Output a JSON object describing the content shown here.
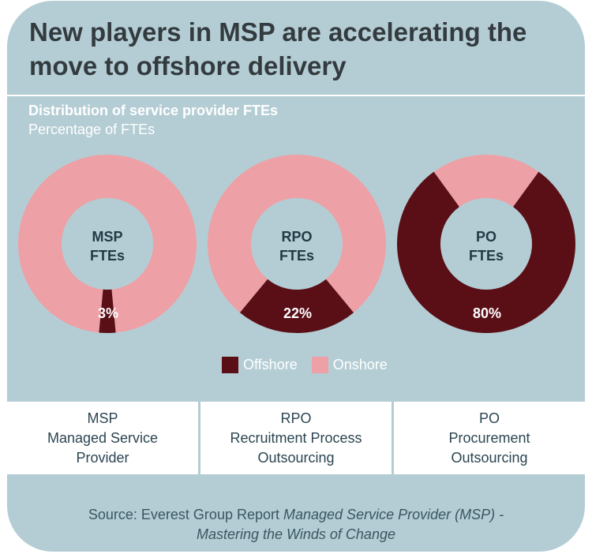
{
  "title": "New players in MSP are accelerating the move to offshore delivery",
  "subtitle": "Distribution of service provider FTEs",
  "unit_label": "Percentage of FTEs",
  "colors": {
    "offshore": "#5a0f17",
    "onshore": "#eda0a6",
    "background": "#b4cdd4"
  },
  "chart_data": {
    "type": "pie",
    "variant": "donut",
    "title": "Distribution of service provider FTEs",
    "subtitle": "Percentage of FTEs",
    "series_names": [
      "Offshore",
      "Onshore"
    ],
    "charts": [
      {
        "name": "MSP",
        "center_line1": "MSP",
        "center_line2": "FTEs",
        "offshore_pct": 3,
        "onshore_pct": 97,
        "pct_label": "3%"
      },
      {
        "name": "RPO",
        "center_line1": "RPO",
        "center_line2": "FTEs",
        "offshore_pct": 22,
        "onshore_pct": 78,
        "pct_label": "22%"
      },
      {
        "name": "PO",
        "center_line1": "PO",
        "center_line2": "FTEs",
        "offshore_pct": 80,
        "onshore_pct": 20,
        "pct_label": "80%"
      }
    ],
    "legend": [
      {
        "label": "Offshore",
        "color": "#5a0f17"
      },
      {
        "label": "Onshore",
        "color": "#eda0a6"
      }
    ]
  },
  "abbreviations": [
    {
      "abbr": "MSP",
      "line1": "Managed Service",
      "line2": "Provider"
    },
    {
      "abbr": "RPO",
      "line1": "Recruitment Process",
      "line2": "Outsourcing"
    },
    {
      "abbr": "PO",
      "line1": "Procurement",
      "line2": "Outsourcing"
    }
  ],
  "source": {
    "prefix": "Source: Everest Group Report ",
    "report_title_line1": "Managed Service Provider (MSP) -",
    "report_title_line2": "Mastering the Winds of Change"
  }
}
